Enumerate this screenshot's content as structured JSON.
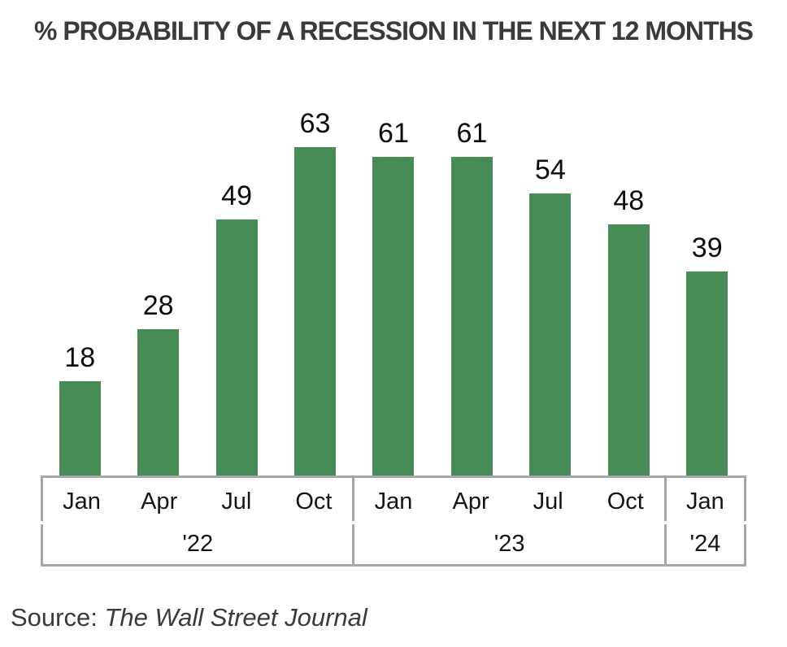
{
  "chart_data": {
    "type": "bar",
    "title": "% PROBABILITY OF A RECESSION IN THE NEXT 12 MONTHS",
    "categories": [
      "Jan",
      "Apr",
      "Jul",
      "Oct",
      "Jan",
      "Apr",
      "Jul",
      "Oct",
      "Jan"
    ],
    "values": [
      18,
      28,
      49,
      63,
      61,
      61,
      54,
      48,
      39
    ],
    "year_groups": [
      {
        "label": "'22",
        "span": 4
      },
      {
        "label": "'23",
        "span": 4
      },
      {
        "label": "'24",
        "span": 1
      }
    ],
    "xlabel": "",
    "ylabel": "",
    "ylim": [
      0,
      70
    ],
    "grid": false,
    "legend": "none",
    "data_labels": true,
    "bar_color": "#478b56",
    "axis_line_color": "#a6a6a6",
    "label_color": "#0d0d0d"
  },
  "source": {
    "prefix": "Source: ",
    "name": "The Wall Street Journal"
  }
}
